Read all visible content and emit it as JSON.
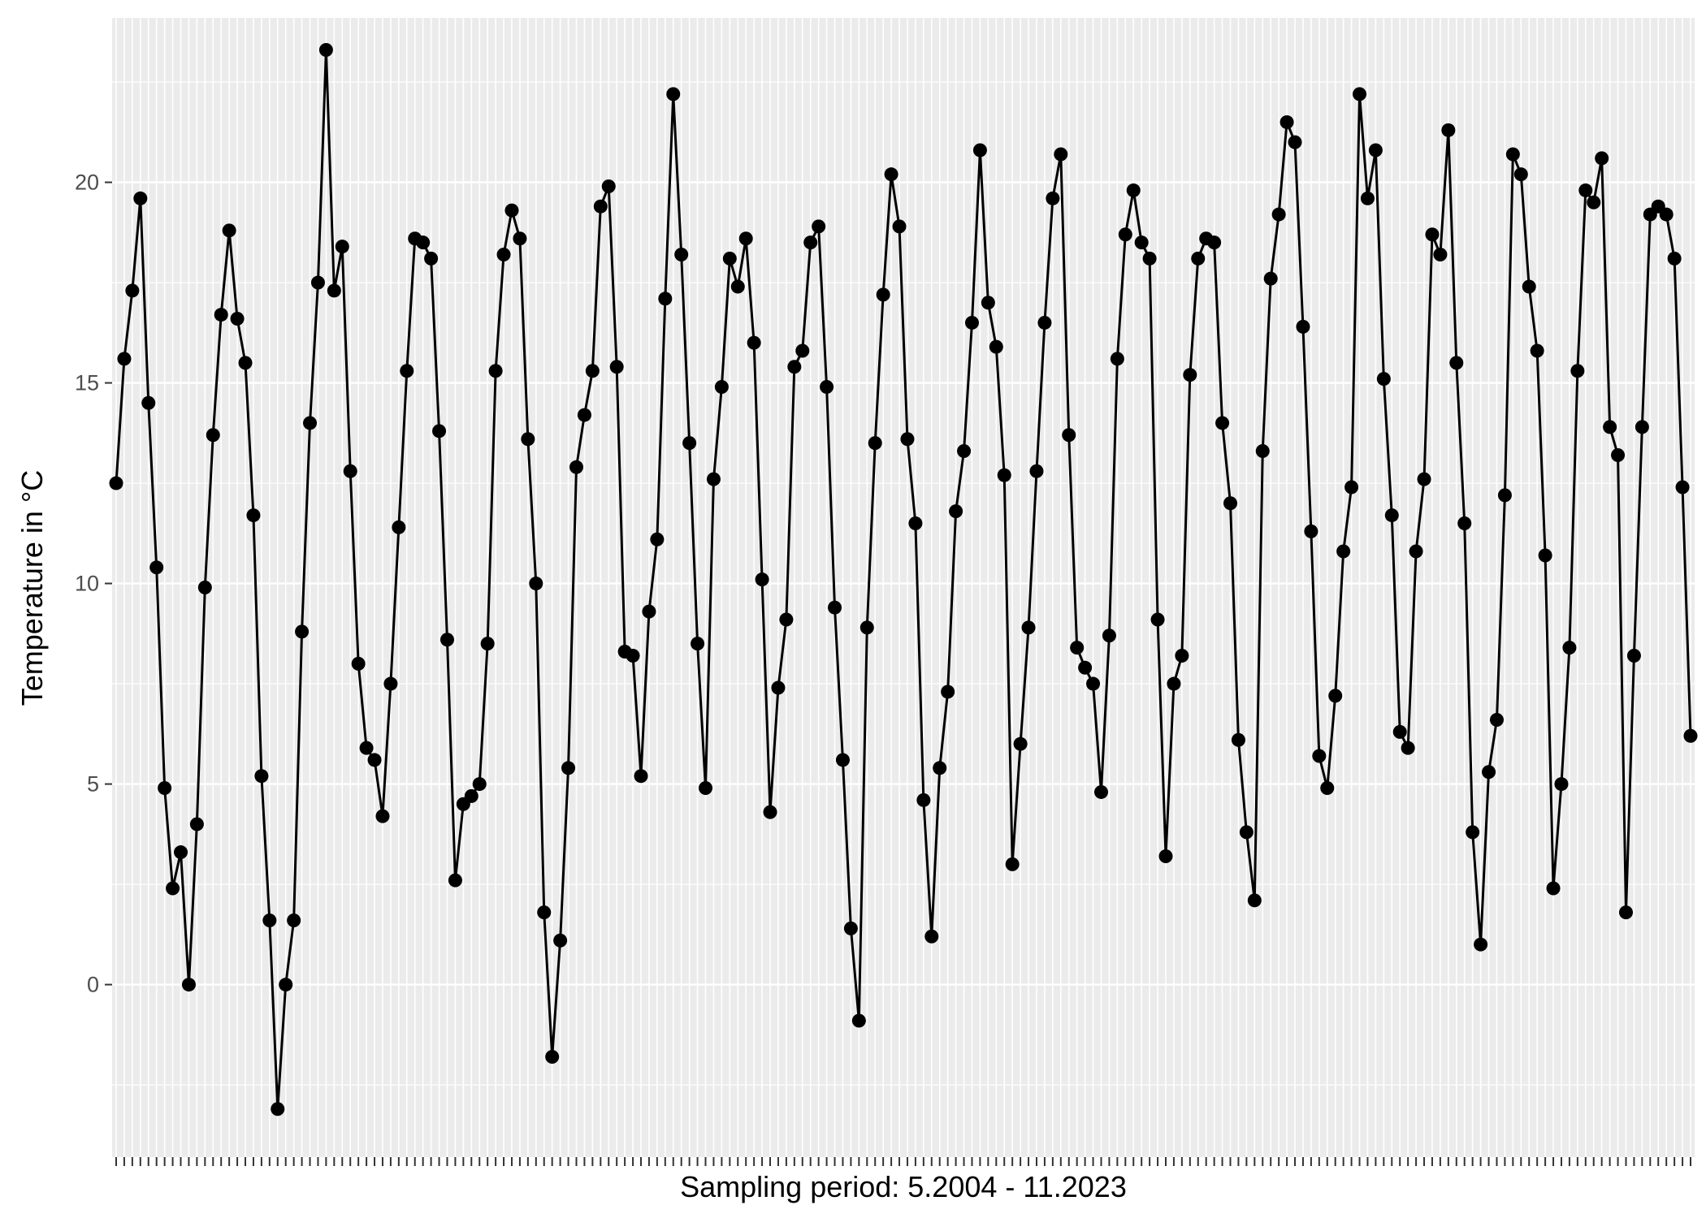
{
  "chart_data": {
    "type": "line",
    "title": "",
    "xlabel": "Sampling period: 5.2004 - 11.2023",
    "ylabel": "Temperature in °C",
    "ylim": [
      -4.3,
      24.1
    ],
    "yticks": [
      0,
      5,
      10,
      15,
      20
    ],
    "grid": true,
    "legend": "none",
    "markers": true,
    "colors": {
      "panel": "#ebebeb",
      "grid": "#ffffff",
      "line": "#000000",
      "axis_text": "#4d4d4d"
    },
    "series": [
      {
        "values": [
          12.5,
          15.6,
          17.3,
          19.6,
          14.5,
          10.4,
          4.9,
          2.4,
          3.3,
          0.0,
          4.0,
          9.9,
          13.7,
          16.7,
          18.8,
          16.6,
          15.5,
          11.7,
          5.2,
          1.6,
          -3.1,
          0.0,
          1.6,
          8.8,
          14.0,
          17.5,
          23.3,
          17.3,
          18.4,
          12.8,
          8.0,
          5.9,
          5.6,
          4.2,
          7.5,
          11.4,
          15.3,
          18.6,
          18.5,
          18.1,
          13.8,
          8.6,
          2.6,
          4.5,
          4.7,
          5.0,
          8.5,
          15.3,
          18.2,
          19.3,
          18.6,
          13.6,
          10.0,
          1.8,
          -1.8,
          1.1,
          5.4,
          12.9,
          14.2,
          15.3,
          19.4,
          19.9,
          15.4,
          8.3,
          8.2,
          5.2,
          9.3,
          11.1,
          17.1,
          22.2,
          18.2,
          13.5,
          8.5,
          4.9,
          12.6,
          14.9,
          18.1,
          17.4,
          18.6,
          16.0,
          10.1,
          4.3,
          7.4,
          9.1,
          15.4,
          15.8,
          18.5,
          18.9,
          14.9,
          9.4,
          5.6,
          1.4,
          -0.9,
          8.9,
          13.5,
          17.2,
          20.2,
          18.9,
          13.6,
          11.5,
          4.6,
          1.2,
          5.4,
          7.3,
          11.8,
          13.3,
          16.5,
          20.8,
          17.0,
          15.9,
          12.7,
          3.0,
          6.0,
          8.9,
          12.8,
          16.5,
          19.6,
          20.7,
          13.7,
          8.4,
          7.9,
          7.5,
          4.8,
          8.7,
          15.6,
          18.7,
          19.8,
          18.5,
          18.1,
          9.1,
          3.2,
          7.5,
          8.2,
          15.2,
          18.1,
          18.6,
          18.5,
          14.0,
          12.0,
          6.1,
          3.8,
          2.1,
          13.3,
          17.6,
          19.2,
          21.5,
          21.0,
          16.4,
          11.3,
          5.7,
          4.9,
          7.2,
          10.8,
          12.4,
          22.2,
          19.6,
          20.8,
          15.1,
          11.7,
          6.3,
          5.9,
          10.8,
          12.6,
          18.7,
          18.2,
          21.3,
          15.5,
          11.5,
          3.8,
          1.0,
          5.3,
          6.6,
          12.2,
          20.7,
          20.2,
          17.4,
          15.8,
          10.7,
          2.4,
          5.0,
          8.4,
          15.3,
          19.8,
          19.5,
          20.6,
          13.9,
          13.2,
          1.8,
          8.2,
          13.9,
          19.2,
          19.4,
          19.2,
          18.1,
          12.4,
          6.2
        ]
      }
    ]
  }
}
